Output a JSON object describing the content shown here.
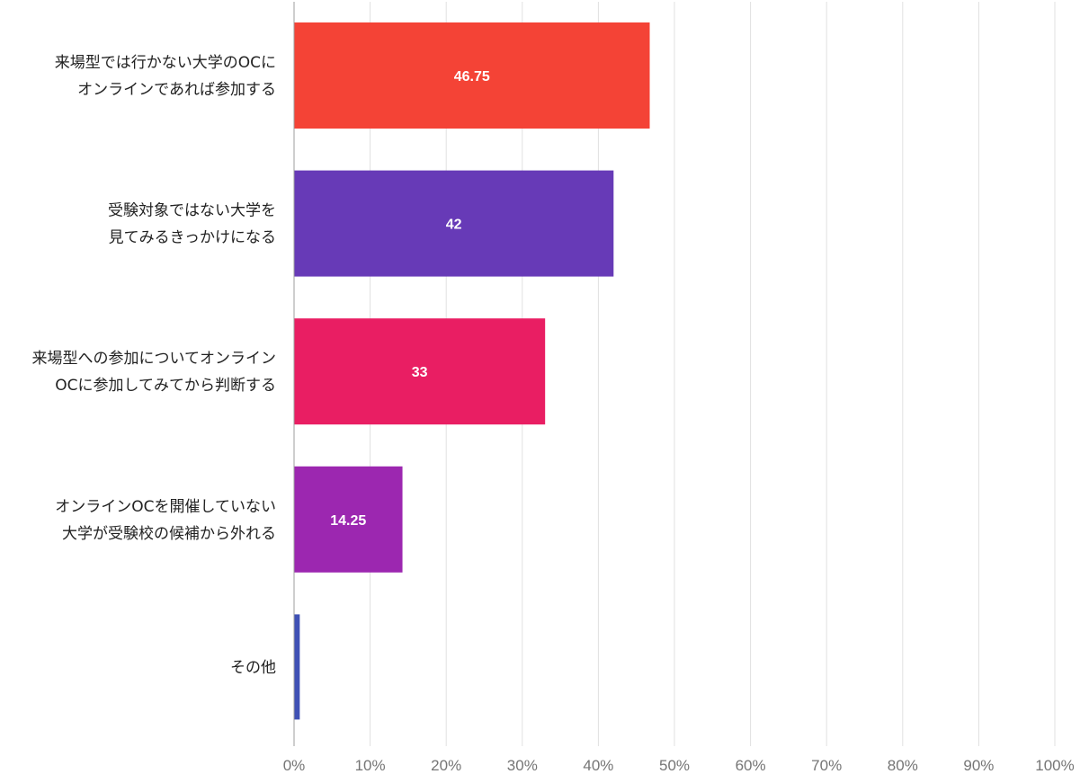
{
  "chart_data": {
    "type": "bar",
    "orientation": "horizontal",
    "title": "",
    "xlabel": "",
    "ylabel": "",
    "xlim": [
      0,
      100
    ],
    "xticks": [
      "0%",
      "10%",
      "20%",
      "30%",
      "40%",
      "50%",
      "60%",
      "70%",
      "80%",
      "90%",
      "100%"
    ],
    "grid": true,
    "legend": "none",
    "categories": [
      [
        "来場型では行かない大学のOCに",
        "オンラインであれば参加する"
      ],
      [
        "受験対象ではない大学を",
        "見てみるきっかけになる"
      ],
      [
        "来場型への参加についてオンライン",
        "OCに参加してみてから判断する"
      ],
      [
        "オンラインOCを開催していない",
        "大学が受験校の候補から外れる"
      ],
      [
        "その他"
      ]
    ],
    "values": [
      46.75,
      42,
      33,
      14.25,
      0.75
    ],
    "data_labels": [
      "46.75",
      "42",
      "33",
      "14.25",
      ""
    ],
    "colors": [
      "#f44336",
      "#673ab7",
      "#e91e63",
      "#9c27b0",
      "#3f51b5"
    ]
  }
}
